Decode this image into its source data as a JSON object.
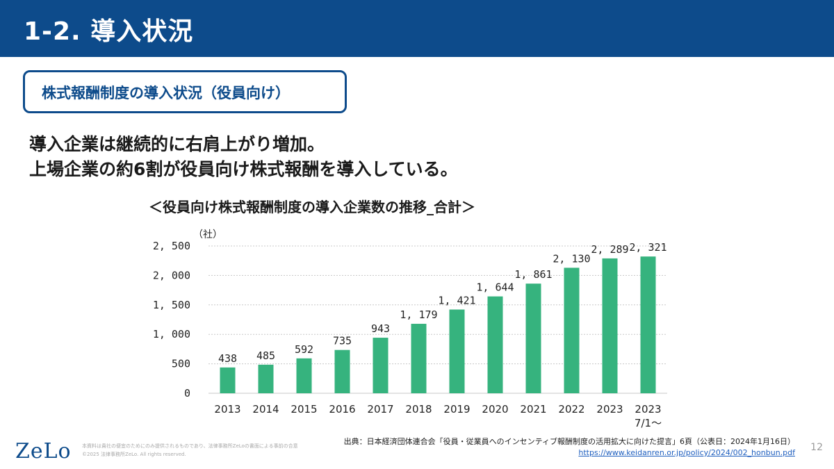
{
  "header": {
    "title": "1-2. 導入状況"
  },
  "box_label": "株式報酬制度の導入状況（役員向け）",
  "lead": [
    "導入企業は継続的に右肩上がり増加。",
    "上場企業の約6割が役員向け株式報酬を導入している。"
  ],
  "chart_title": "＜役員向け株式報酬制度の導入企業数の推移_合計＞",
  "chart_data": {
    "type": "bar",
    "unit_label": "（社）",
    "categories": [
      "2013",
      "2014",
      "2015",
      "2016",
      "2017",
      "2018",
      "2019",
      "2020",
      "2021",
      "2022",
      "2023",
      "2023\n7/1～"
    ],
    "values": [
      438,
      485,
      592,
      735,
      943,
      1179,
      1421,
      1644,
      1861,
      2130,
      2289,
      2321
    ],
    "value_labels": [
      "438",
      "485",
      "592",
      "735",
      "943",
      "1, 179",
      "1, 421",
      "1, 644",
      "1, 861",
      "2, 130",
      "2, 289",
      "2, 321"
    ],
    "y_ticks": [
      0,
      500,
      1000,
      1500,
      2000,
      2500
    ],
    "y_tick_labels": [
      "0",
      "500",
      "1, 000",
      "1, 500",
      "2, 000",
      "2, 500"
    ],
    "ylim": [
      0,
      2500
    ],
    "grid": true,
    "bar_color": "#36b37e"
  },
  "footer": {
    "logo": "ZeLo",
    "disclaimer_1": "本資料は貴社の便宜のためにのみ提供されるものであり、法律事務所ZeLoの書面による事前の合意",
    "disclaimer_2": "©2025 法律事務所ZeLo. All rights reserved.",
    "source_text": "出典：日本経済団体連合会「役員・従業員へのインセンティブ報酬制度の活用拡大に向けた提言」6頁（公表日：2024年1月16日）",
    "source_url": "https://www.keidanren.or.jp/policy/2024/002_honbun.pdf",
    "page_number": "12"
  },
  "colors": {
    "brand": "#0d4b8b",
    "bar": "#36b37e"
  }
}
